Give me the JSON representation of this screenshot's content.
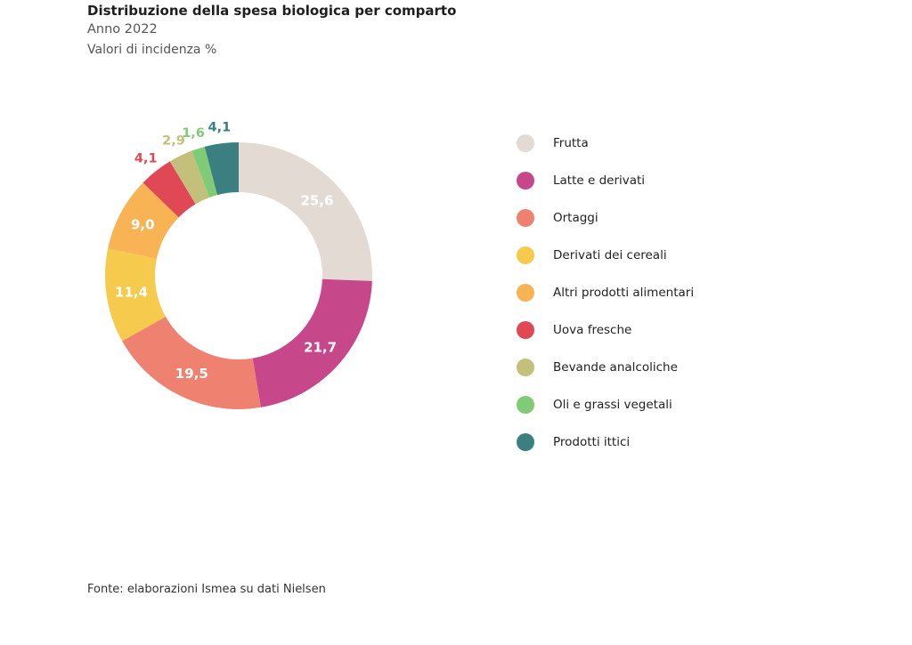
{
  "chart_data": {
    "type": "pie",
    "variant": "donut",
    "title": "Distribuzione della spesa biologica per comparto",
    "subtitle": "Anno 2022",
    "unit_label": "Valori di incidenza %",
    "legend_position": "right",
    "categories": [
      "Frutta",
      "Latte e derivati",
      "Ortaggi",
      "Derivati dei cereali",
      "Altri prodotti alimentari",
      "Uova fresche",
      "Bevande analcoliche",
      "Oli e grassi vegetali",
      "Prodotti ittici"
    ],
    "values": [
      25.6,
      21.7,
      19.5,
      11.4,
      9.0,
      4.1,
      2.9,
      1.6,
      4.1
    ],
    "value_labels": [
      "25,6",
      "21,7",
      "19,5",
      "11,4",
      "9,0",
      "4,1",
      "2,9",
      "1,6",
      "4,1"
    ],
    "colors": [
      "#e3dbd3",
      "#c7478b",
      "#ee8170",
      "#f5ca4d",
      "#f8b355",
      "#df4854",
      "#c2c07a",
      "#7fcb76",
      "#3c7f80"
    ]
  },
  "source": "Fonte: elaborazioni Ismea su dati Nielsen"
}
